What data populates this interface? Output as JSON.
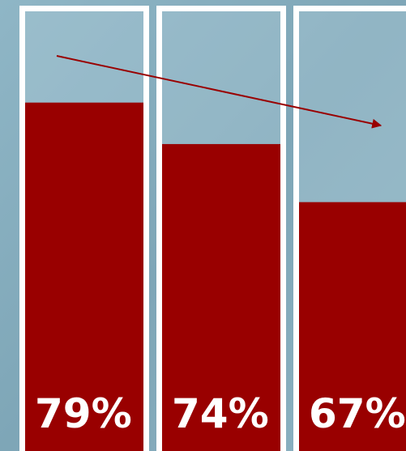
{
  "chart_data": {
    "type": "bar",
    "values": [
      79,
      74,
      67
    ],
    "value_labels": [
      "79%",
      "74%",
      "67%"
    ],
    "color": "#990000",
    "ylim": [
      37,
      90
    ]
  }
}
